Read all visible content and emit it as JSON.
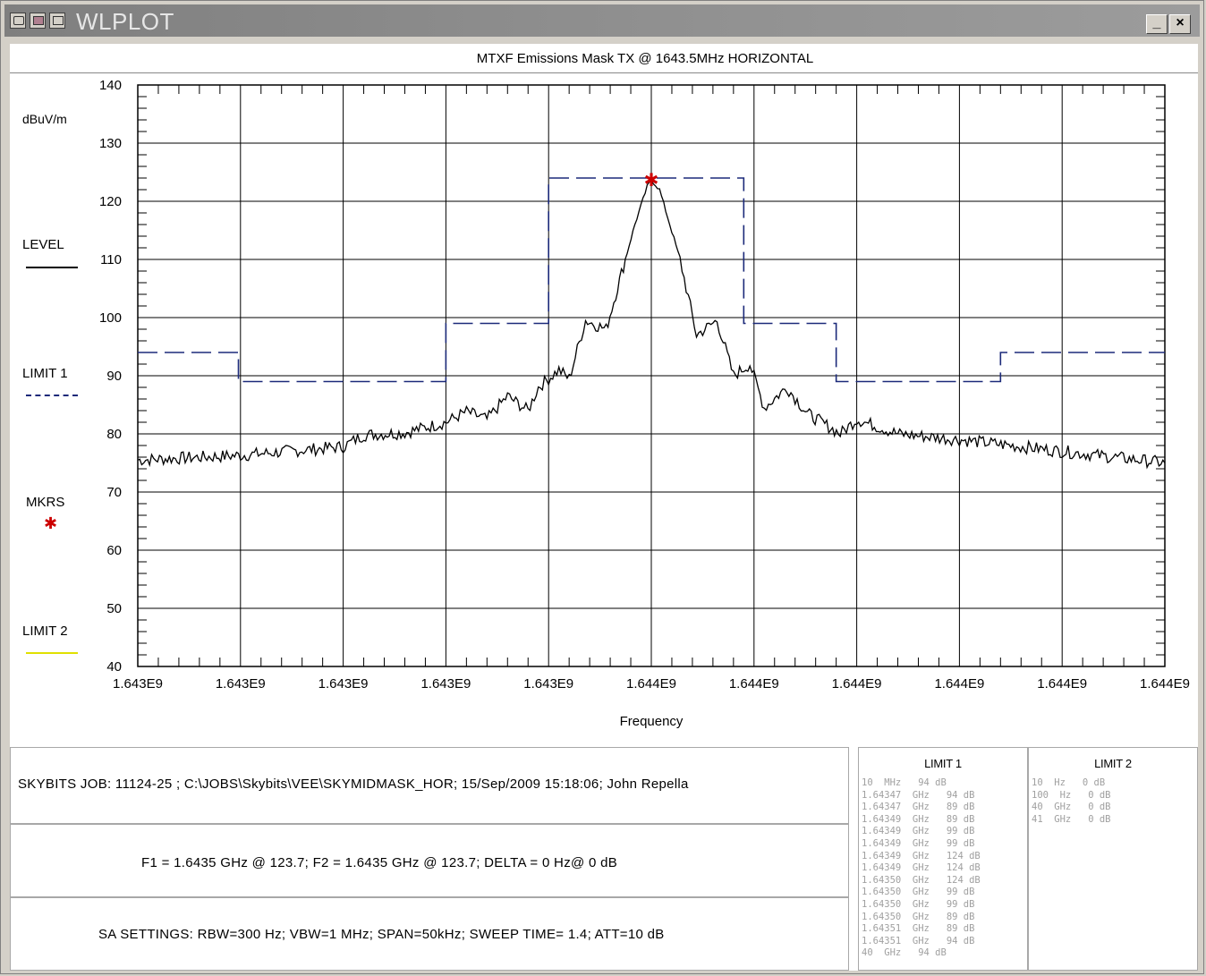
{
  "window": {
    "title": "WLPLOT",
    "icons": [
      "app-icon",
      "plot-icon",
      "window-icon"
    ],
    "minimize_label": "_",
    "close_label": "×"
  },
  "chart": {
    "title": "MTXF Emissions Mask TX @ 1643.5MHz HORIZONTAL",
    "ylabel": "dBuV/m",
    "xlabel": "Frequency"
  },
  "legend": {
    "level": {
      "label": "LEVEL",
      "color": "#000000"
    },
    "limit1": {
      "label": "LIMIT 1",
      "color": "#1c2a7a"
    },
    "mkrs": {
      "label": "MKRS",
      "symbol": "✱",
      "color": "#cc0000"
    },
    "limit2": {
      "label": "LIMIT 2",
      "color": "#e0e000"
    }
  },
  "chart_data": {
    "type": "line",
    "ylim": [
      40,
      140
    ],
    "yticks": [
      "40",
      "50",
      "60",
      "70",
      "80",
      "90",
      "100",
      "110",
      "120",
      "130",
      "140"
    ],
    "xlim": [
      1.643475,
      1.643525
    ],
    "x_unit": "GHz",
    "xtick_labels": [
      "1.643E9",
      "1.643E9",
      "1.643E9",
      "1.643E9",
      "1.643E9",
      "1.644E9",
      "1.644E9",
      "1.644E9",
      "1.644E9",
      "1.644E9",
      "1.644E9"
    ],
    "grid": true,
    "series": [
      {
        "name": "LEVEL",
        "style": "solid",
        "color": "#000000",
        "x": [
          1.643475,
          1.64348,
          1.643485,
          1.64349,
          1.643495,
          1.6435,
          1.643505,
          1.643509,
          1.643513,
          1.643517,
          1.643521,
          1.643525
        ],
        "y": [
          75.5,
          76.3,
          77.8,
          80.0,
          83.0,
          123.0,
          100.0,
          87.5,
          83.0,
          80.4,
          77.5,
          75.8
        ],
        "key_points": [
          {
            "x": 1.643475,
            "y": 75.5
          },
          {
            "x": 1.64348,
            "y": 76.3
          },
          {
            "x": 1.643485,
            "y": 77.8
          },
          {
            "x": 1.643486,
            "y": 79.8
          },
          {
            "x": 1.643488,
            "y": 80.2
          },
          {
            "x": 1.64349,
            "y": 82.0
          },
          {
            "x": 1.643491,
            "y": 83.8
          },
          {
            "x": 1.643492,
            "y": 82.5
          },
          {
            "x": 1.643493,
            "y": 86.5
          },
          {
            "x": 1.643494,
            "y": 84.0
          },
          {
            "x": 1.6434945,
            "y": 88.0
          },
          {
            "x": 1.6434955,
            "y": 91.0
          },
          {
            "x": 1.643496,
            "y": 89.5
          },
          {
            "x": 1.6434968,
            "y": 99.5
          },
          {
            "x": 1.6434978,
            "y": 98.0
          },
          {
            "x": 1.6434992,
            "y": 116.0
          },
          {
            "x": 1.6434998,
            "y": 122.5
          },
          {
            "x": 1.6435,
            "y": 123.7
          },
          {
            "x": 1.6435004,
            "y": 122.0
          },
          {
            "x": 1.6435014,
            "y": 110.0
          },
          {
            "x": 1.6435022,
            "y": 97.0
          },
          {
            "x": 1.6435032,
            "y": 99.5
          },
          {
            "x": 1.643504,
            "y": 90.0
          },
          {
            "x": 1.6435048,
            "y": 92.0
          },
          {
            "x": 1.6435055,
            "y": 84.5
          },
          {
            "x": 1.6435066,
            "y": 88.0
          },
          {
            "x": 1.6435076,
            "y": 83.5
          },
          {
            "x": 1.6435092,
            "y": 80.0
          },
          {
            "x": 1.64351,
            "y": 82.5
          },
          {
            "x": 1.643512,
            "y": 80.0
          },
          {
            "x": 1.643515,
            "y": 79.0
          },
          {
            "x": 1.64352,
            "y": 77.0
          },
          {
            "x": 1.643525,
            "y": 75.0
          }
        ]
      },
      {
        "name": "LIMIT 1",
        "style": "dashed",
        "color": "#1c2a7a",
        "x": [
          1.643475,
          1.64347,
          1.64347,
          1.64349,
          1.64349,
          1.643495,
          1.643495,
          1.6435,
          1.6435,
          1.6435045,
          1.6435045,
          1.643509,
          1.643509,
          1.643517,
          1.643517,
          1.643525
        ],
        "steps": [
          {
            "x_start": 1.643475,
            "x_end": 1.64347,
            "y": 94
          },
          {
            "x_start": 1.64347,
            "x_end": 1.64349,
            "y": 89
          },
          {
            "x_start": 1.64349,
            "x_end": 1.643495,
            "y": 99
          },
          {
            "x_start": 1.643495,
            "x_end": 1.6435045,
            "y": 124
          },
          {
            "x_start": 1.6435045,
            "x_end": 1.643509,
            "y": 99
          },
          {
            "x_start": 1.643509,
            "x_end": 1.643517,
            "y": 89
          },
          {
            "x_start": 1.643517,
            "x_end": 1.643525,
            "y": 94
          }
        ]
      }
    ],
    "markers": [
      {
        "x": 1.6435,
        "y": 123.7,
        "symbol": "*",
        "color": "#cc0000"
      }
    ]
  },
  "info": {
    "job_line": "SKYBITS JOB: 11124-25   ; C:\\JOBS\\Skybits\\VEE\\SKYMIDMASK_HOR;    15/Sep/2009 15:18:06; John Repella",
    "marker_line": "F1 = 1.6435 GHz @ 123.7;   F2 = 1.6435 GHz @ 123.7;   DELTA = 0 Hz@ 0 dB",
    "sa_line": "SA SETTINGS: RBW=300 Hz; VBW=1 MHz; SPAN=50kHz; SWEEP TIME= 1.4; ATT=10 dB"
  },
  "limit1_table": {
    "header": "LIMIT 1",
    "rows": [
      "10  MHz   94 dB",
      "1.64347  GHz   94 dB",
      "1.64347  GHz   89 dB",
      "1.64349  GHz   89 dB",
      "1.64349  GHz   99 dB",
      "1.64349  GHz   99 dB",
      "1.64349  GHz   124 dB",
      "1.64349  GHz   124 dB",
      "1.64350  GHz   124 dB",
      "1.64350  GHz   99 dB",
      "1.64350  GHz   99 dB",
      "1.64350  GHz   89 dB",
      "1.64351  GHz   89 dB",
      "1.64351  GHz   94 dB",
      "40  GHz   94 dB"
    ]
  },
  "limit2_table": {
    "header": "LIMIT 2",
    "rows": [
      "10  Hz   0 dB",
      "100  Hz   0 dB",
      "40  GHz   0 dB",
      "41  GHz   0 dB"
    ]
  }
}
